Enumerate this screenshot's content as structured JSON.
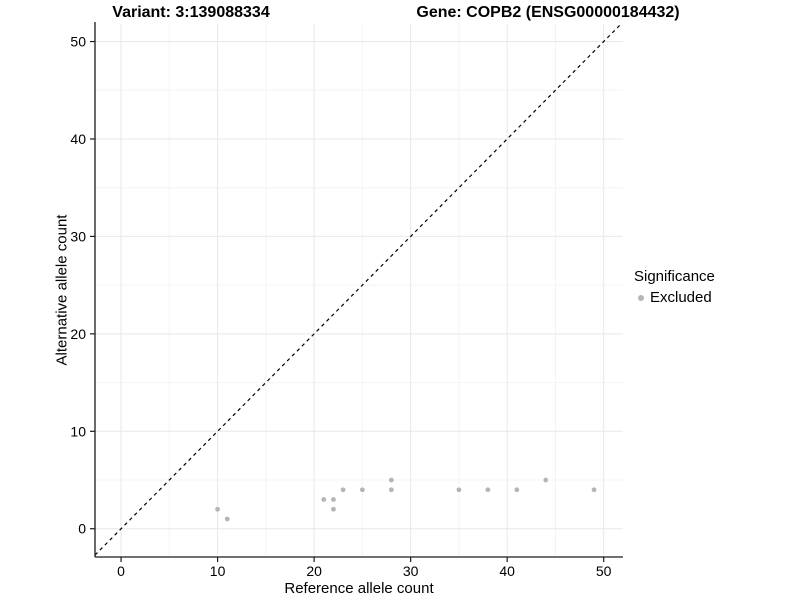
{
  "chart_data": {
    "type": "scatter",
    "title_left": "Variant: 3:139088334",
    "title_right": "Gene: COPB2 (ENSG00000184432)",
    "xlabel": "Reference allele count",
    "ylabel": "Alternative allele count",
    "xlim": [
      -2.7,
      52.0
    ],
    "ylim": [
      -2.9,
      51.8
    ],
    "x_major_ticks": [
      0,
      10,
      20,
      30,
      40,
      50
    ],
    "y_major_ticks": [
      0,
      10,
      20,
      30,
      40,
      50
    ],
    "x_minor_ticks": [
      5,
      15,
      25,
      35,
      45
    ],
    "y_minor_ticks": [
      5,
      15,
      25,
      35,
      45
    ],
    "grid": true,
    "identity_line": {
      "slope": 1,
      "intercept": 0,
      "style": "dashed",
      "color": "#000000"
    },
    "series": [
      {
        "name": "Excluded",
        "color": "#b5b5b5",
        "points": [
          [
            10,
            2
          ],
          [
            11,
            1
          ],
          [
            21,
            3
          ],
          [
            22,
            2
          ],
          [
            22,
            3
          ],
          [
            23,
            4
          ],
          [
            25,
            4
          ],
          [
            28,
            4
          ],
          [
            28,
            5
          ],
          [
            35,
            4
          ],
          [
            38,
            4
          ],
          [
            41,
            4
          ],
          [
            44,
            5
          ],
          [
            49,
            4
          ]
        ]
      }
    ],
    "legend": {
      "title": "Significance",
      "position": "right",
      "items": [
        {
          "label": "Excluded",
          "color": "#b5b5b5"
        }
      ]
    },
    "colors": {
      "background": "#ffffff",
      "grid_major": "#e8e8e8",
      "grid_minor": "#f4f4f4",
      "axis_line": "#1a1a1a",
      "tick": "#1a1a1a",
      "tick_label": "#000000"
    }
  }
}
